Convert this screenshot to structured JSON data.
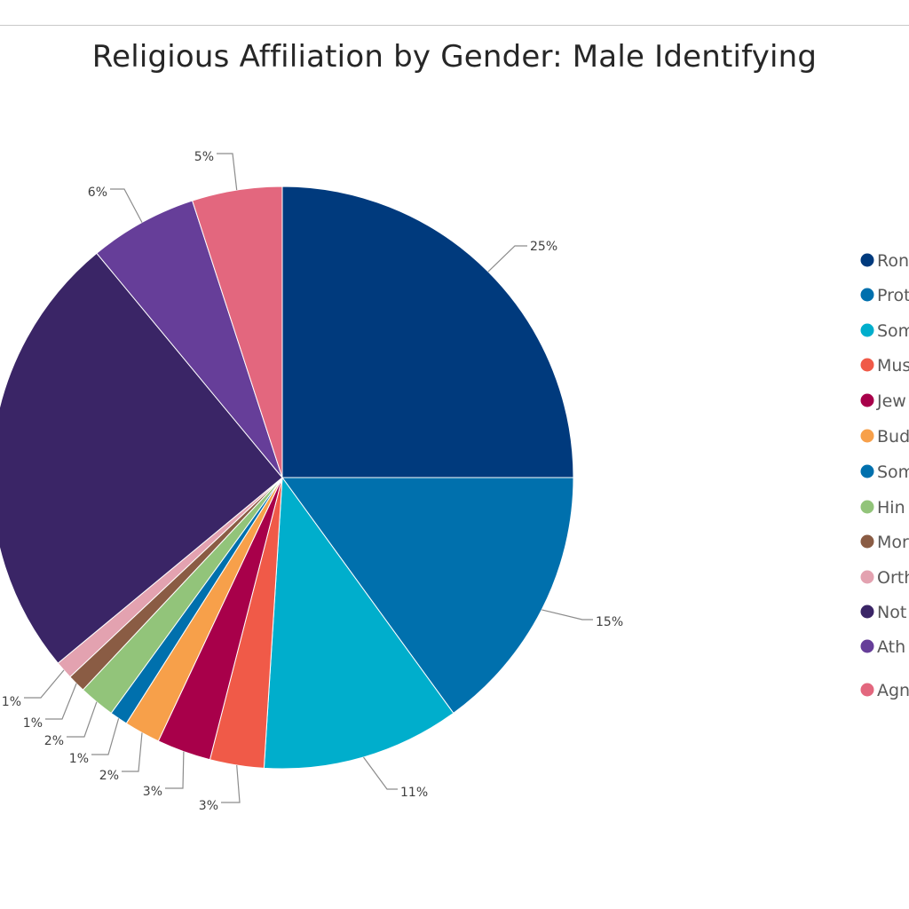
{
  "chart_data": {
    "type": "pie",
    "title": "Religious Affiliation by Gender: Male Identifying",
    "legend_position": "right",
    "categories": [
      "Ron",
      "Prot",
      "Som",
      "Mus",
      "Jew",
      "Bud",
      "Som",
      "Hin",
      "Mor",
      "Orth",
      "Not",
      "Ath",
      "Agn"
    ],
    "values": [
      25,
      15,
      11,
      3,
      3,
      2,
      1,
      2,
      1,
      1,
      25,
      6,
      5
    ],
    "labels": [
      "25%",
      "15%",
      "11%",
      "3%",
      "3%",
      "2%",
      "1%",
      "2%",
      "1%",
      "1%",
      "",
      "6%",
      "5%"
    ],
    "colors": [
      "#003a7d",
      "#0070ad",
      "#00aecc",
      "#f05a48",
      "#a8004a",
      "#f7a04a",
      "#0070ad",
      "#92c47a",
      "#8a5c44",
      "#e3a2b0",
      "#3a2566",
      "#663e99",
      "#e3677e"
    ]
  }
}
